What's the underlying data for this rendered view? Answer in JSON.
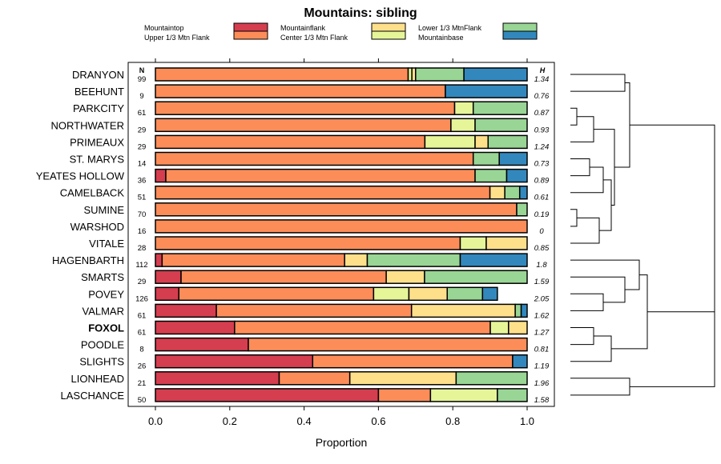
{
  "chart_data": {
    "type": "bar",
    "stacked": true,
    "orientation": "horizontal",
    "title": "Mountains: sibling",
    "xlabel": "Proportion",
    "xlim": [
      0,
      1
    ],
    "xticks": [
      "0.0",
      "0.2",
      "0.4",
      "0.6",
      "0.8",
      "1.0"
    ],
    "n_header": "N",
    "h_header": "H",
    "legend_order": [
      "Mountaintop",
      "Upper 1/3 Mtn Flank",
      "Mountainflank",
      "Center 1/3 Mtn Flank",
      "Lower 1/3 MtnFlank",
      "Mountainbase"
    ],
    "segment_order": [
      "Mountaintop",
      "Upper 1/3 Mtn Flank",
      "Center 1/3 Mtn Flank",
      "Mountainflank",
      "Lower 1/3 MtnFlank",
      "Mountainbase"
    ],
    "colors": {
      "Mountaintop": "#d53e4f",
      "Upper 1/3 Mtn Flank": "#fc8d59",
      "Mountainflank": "#fee08b",
      "Center 1/3 Mtn Flank": "#e6f598",
      "Lower 1/3 MtnFlank": "#99d594",
      "Mountainbase": "#3288bd"
    },
    "highlight_category": "FOXOL",
    "rows": [
      {
        "name": "DRANYON",
        "n": "99",
        "h": "1.34",
        "values": [
          0,
          0.68,
          0.01,
          0.01,
          0.13,
          0.17
        ]
      },
      {
        "name": "BEEHUNT",
        "n": "9",
        "h": "0.76",
        "values": [
          0,
          0.78,
          0,
          0,
          0,
          0.22
        ]
      },
      {
        "name": "PARKCITY",
        "n": "61",
        "h": "0.87",
        "values": [
          0,
          0.805,
          0.05,
          0,
          0.145,
          0
        ]
      },
      {
        "name": "NORTHWATER",
        "n": "29",
        "h": "0.93",
        "values": [
          0,
          0.795,
          0.065,
          0,
          0.14,
          0
        ]
      },
      {
        "name": "PRIMEAUX",
        "n": "29",
        "h": "1.24",
        "values": [
          0,
          0.725,
          0.135,
          0.035,
          0.105,
          0
        ]
      },
      {
        "name": "ST. MARYS",
        "n": "14",
        "h": "0.73",
        "values": [
          0,
          0.855,
          0,
          0,
          0.07,
          0.075
        ]
      },
      {
        "name": "YEATES HOLLOW",
        "n": "36",
        "h": "0.89",
        "values": [
          0.028,
          0.832,
          0,
          0,
          0.085,
          0.055
        ]
      },
      {
        "name": "CAMELBACK",
        "n": "51",
        "h": "0.61",
        "values": [
          0,
          0.9,
          0,
          0.04,
          0.04,
          0.02
        ]
      },
      {
        "name": "SUMINE",
        "n": "70",
        "h": "0.19",
        "values": [
          0,
          0.972,
          0,
          0,
          0.028,
          0
        ]
      },
      {
        "name": "WARSHOD",
        "n": "16",
        "h": "0",
        "values": [
          0,
          1,
          0,
          0,
          0,
          0
        ]
      },
      {
        "name": "VITALE",
        "n": "28",
        "h": "0.85",
        "values": [
          0,
          0.82,
          0.07,
          0.11,
          0,
          0
        ]
      },
      {
        "name": "HAGENBARTH",
        "n": "112",
        "h": "1.8",
        "values": [
          0.018,
          0.491,
          0,
          0.061,
          0.25,
          0.18
        ]
      },
      {
        "name": "SMARTS",
        "n": "29",
        "h": "1.59",
        "values": [
          0.069,
          0.552,
          0,
          0.103,
          0.276,
          0
        ]
      },
      {
        "name": "POVEY",
        "n": "126",
        "h": "2.05",
        "values": [
          0.063,
          0.524,
          0.095,
          0.103,
          0.095,
          0.04
        ]
      },
      {
        "name": "VALMAR",
        "n": "61",
        "h": "1.62",
        "values": [
          0.164,
          0.525,
          0,
          0.279,
          0.016,
          0.016
        ]
      },
      {
        "name": "FOXOL",
        "n": "61",
        "h": "1.27",
        "values": [
          0.213,
          0.688,
          0.049,
          0.05,
          0,
          0
        ]
      },
      {
        "name": "POODLE",
        "n": "8",
        "h": "0.81",
        "values": [
          0.25,
          0.75,
          0,
          0,
          0,
          0
        ]
      },
      {
        "name": "SLIGHTS",
        "n": "26",
        "h": "1.19",
        "values": [
          0.423,
          0.538,
          0,
          0,
          0,
          0.039
        ]
      },
      {
        "name": "LIONHEAD",
        "n": "21",
        "h": "1.96",
        "values": [
          0.333,
          0.19,
          0,
          0.286,
          0.191,
          0
        ]
      },
      {
        "name": "LASCHANCE",
        "n": "50",
        "h": "1.58",
        "values": [
          0.6,
          0.14,
          0.18,
          0,
          0.08,
          0
        ]
      }
    ]
  }
}
